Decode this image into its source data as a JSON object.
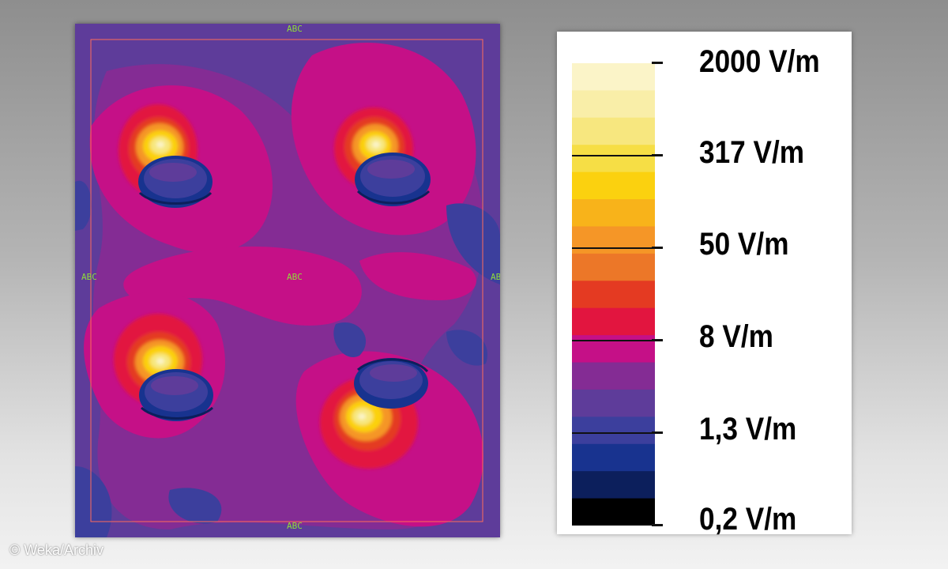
{
  "plot": {
    "marker_labels": {
      "top": "ABC",
      "left": "ABC",
      "center": "ABC",
      "right": "ABC",
      "bottom": "ABC"
    }
  },
  "legend": {
    "labels": [
      "2000 V/m",
      "317 V/m",
      "50 V/m",
      "8 V/m",
      "1,3 V/m",
      "0,2 V/m"
    ],
    "bands": [
      "#fbf4c8",
      "#f9eea8",
      "#f7e77f",
      "#f6de45",
      "#fbd10f",
      "#f8b31a",
      "#f59627",
      "#ec7728",
      "#e43a22",
      "#e2153f",
      "#c51087",
      "#842c94",
      "#5e3c9a",
      "#3c3f9d",
      "#18338f",
      "#0c1f5c",
      "#000000"
    ]
  },
  "credit": "© Weka/Archiv"
}
